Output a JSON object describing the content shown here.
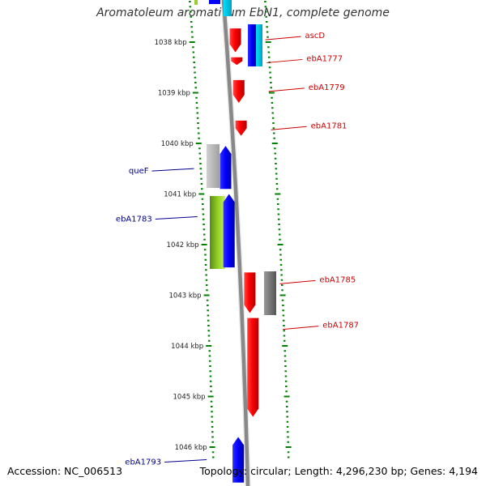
{
  "title": "Aromatoleum aromaticum EbN1, complete genome",
  "footer": {
    "accession": "Accession: NC_006513",
    "topology": "Topology: circular; Length: 4,296,230 bp; Genes: 4,194"
  },
  "colors": {
    "forward_label": "#cc0000",
    "reverse_label": "#00008b",
    "tick": "#008000",
    "backbone": "#888888"
  },
  "ticks": [
    {
      "kbp": 1038,
      "label": "1038 kbp"
    },
    {
      "kbp": 1039,
      "label": "1039 kbp"
    },
    {
      "kbp": 1040,
      "label": "1040 kbp"
    },
    {
      "kbp": 1041,
      "label": "1041 kbp"
    },
    {
      "kbp": 1042,
      "label": "1042 kbp"
    },
    {
      "kbp": 1043,
      "label": "1043 kbp"
    },
    {
      "kbp": 1044,
      "label": "1044 kbp"
    },
    {
      "kbp": 1045,
      "label": "1045 kbp"
    },
    {
      "kbp": 1046,
      "label": "1046 kbp"
    }
  ],
  "genes_forward": [
    {
      "name": "ascD",
      "start": 1037.73,
      "end": 1038.2
    },
    {
      "name": "ebA1777",
      "start": 1038.3,
      "end": 1038.45
    },
    {
      "name": "ebA1779",
      "start": 1038.75,
      "end": 1039.2
    },
    {
      "name": "ebA1781",
      "start": 1039.55,
      "end": 1039.85
    },
    {
      "name": "ebA1785",
      "start": 1042.55,
      "end": 1043.35
    },
    {
      "name": "ebA1787",
      "start": 1043.45,
      "end": 1045.4
    }
  ],
  "genes_reverse": [
    {
      "name": "queF",
      "start": 1040.05,
      "end": 1040.9
    },
    {
      "name": "ebA1783",
      "start": 1041.0,
      "end": 1042.45
    },
    {
      "name": "ebA1793",
      "start": 1045.8,
      "end": 1046.7
    }
  ]
}
